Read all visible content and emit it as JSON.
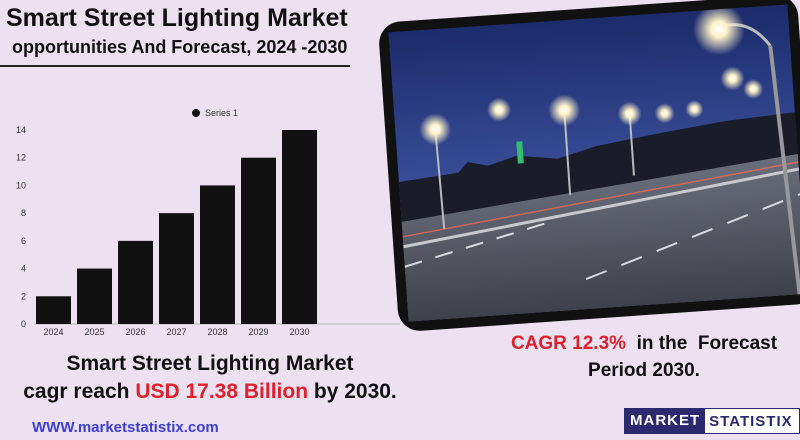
{
  "header": {
    "title": "Smart Street Lighting Market",
    "subtitle": "opportunities And Forecast, 2024 -2030"
  },
  "chart_data": {
    "type": "bar",
    "categories": [
      "2024",
      "2025",
      "2026",
      "2027",
      "2028",
      "2029",
      "2030"
    ],
    "series": [
      {
        "name": "Series 1",
        "values": [
          2,
          4,
          6,
          8,
          10,
          12,
          14
        ]
      }
    ],
    "title": "",
    "xlabel": "",
    "ylabel": "",
    "ylim": [
      0,
      14
    ],
    "yticks": [
      0,
      2,
      4,
      6,
      8,
      10,
      12,
      14
    ],
    "grid": false,
    "legend": "top-center",
    "bar_color": "#111111"
  },
  "summary": {
    "line1": "Smart Street Lighting Market",
    "line2_prefix": "cagr reach ",
    "line2_highlight": "USD  17.38 Billion",
    "line2_suffix": " by 2030."
  },
  "cagr": {
    "highlight": "CAGR 12.3%",
    "text1": "  in the  Forecast",
    "text2": "Period  2030."
  },
  "footer": {
    "website": "WWW.marketstatistix.com",
    "logo_part1": "MARKET",
    "logo_part2": "STATISTIX"
  },
  "colors": {
    "background": "#ece0f1",
    "accent_red": "#e0202a",
    "link_blue": "#3b3fd6",
    "logo_navy": "#2b2a6e"
  }
}
